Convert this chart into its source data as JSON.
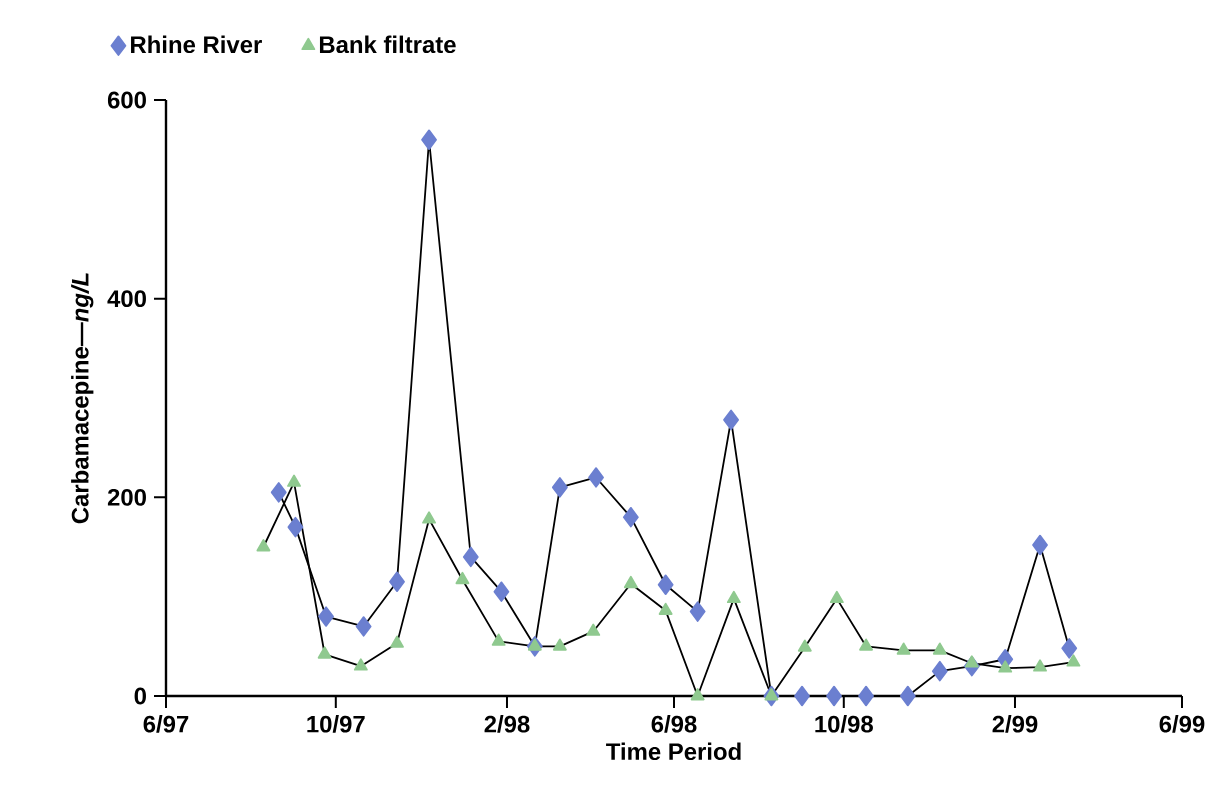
{
  "chart_data": {
    "type": "line",
    "xlabel": "Time Period",
    "ylabel": "Carbamacepine—*ng/L*",
    "xlim": [
      "1997-06-01",
      "1999-06-01"
    ],
    "xticks": [
      {
        "value": "1997-06-01",
        "label": "6/97"
      },
      {
        "value": "1997-10-01",
        "label": "10/97"
      },
      {
        "value": "1998-02-01",
        "label": "2/98"
      },
      {
        "value": "1998-06-01",
        "label": "6/98"
      },
      {
        "value": "1998-10-01",
        "label": "10/98"
      },
      {
        "value": "1999-02-01",
        "label": "2/99"
      },
      {
        "value": "1999-06-01",
        "label": "6/99"
      }
    ],
    "ylim": [
      0,
      600
    ],
    "yticks": [
      0,
      200,
      400,
      600
    ],
    "legend": "top left",
    "grid": false,
    "line_style": "solid",
    "series": [
      {
        "name": "Rhine River",
        "color": "#6b7fd0",
        "marker": "diamond",
        "x": [
          "1997-08-21",
          "1997-09-02",
          "1997-09-24",
          "1997-10-21",
          "1997-11-14",
          "1997-12-07",
          "1998-01-06",
          "1998-01-28",
          "1998-02-21",
          "1998-03-11",
          "1998-04-06",
          "1998-05-01",
          "1998-05-26",
          "1998-06-18",
          "1998-07-12",
          "1998-08-10",
          "1998-09-01",
          "1998-09-24",
          "1998-10-17",
          "1998-11-16",
          "1998-12-09",
          "1999-01-01",
          "1999-01-25",
          "1999-02-19",
          "1999-03-12"
        ],
        "values": [
          205,
          170,
          80,
          70,
          115,
          560,
          140,
          105,
          50,
          210,
          220,
          180,
          112,
          85,
          278,
          0,
          0,
          0,
          0,
          0,
          25,
          30,
          37,
          152,
          48
        ]
      },
      {
        "name": "Bank filtrate",
        "color": "#8fc98f",
        "marker": "triangle",
        "x": [
          "1997-08-10",
          "1997-09-01",
          "1997-09-23",
          "1997-10-19",
          "1997-11-14",
          "1997-12-07",
          "1997-12-31",
          "1998-01-26",
          "1998-02-21",
          "1998-03-11",
          "1998-04-04",
          "1998-05-01",
          "1998-05-26",
          "1998-06-18",
          "1998-07-14",
          "1998-08-10",
          "1998-09-03",
          "1998-09-26",
          "1998-10-17",
          "1998-11-13",
          "1998-12-09",
          "1999-01-01",
          "1999-01-25",
          "1999-02-19",
          "1999-03-15"
        ],
        "values": [
          150,
          215,
          42,
          30,
          53,
          178,
          117,
          55,
          50,
          50,
          65,
          113,
          86,
          0,
          98,
          0,
          49,
          98,
          50,
          46,
          46,
          33,
          28,
          29,
          34
        ]
      }
    ]
  }
}
